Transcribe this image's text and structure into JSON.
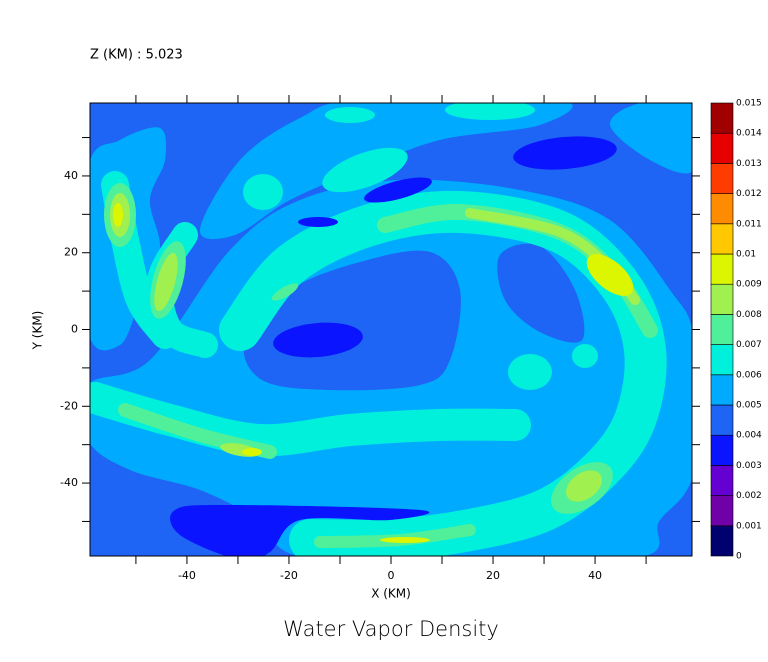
{
  "chart_data": {
    "type": "contour",
    "title": "Water Vapor Density",
    "subtitle": "Z (KM) : 5.023",
    "x_label": "X (KM)",
    "y_label": "Y (KM)",
    "xlim": [
      -59,
      59
    ],
    "ylim": [
      -59,
      59
    ],
    "xticks": [
      -40,
      -20,
      0,
      20,
      40
    ],
    "yticks": [
      -40,
      -20,
      0,
      20,
      40
    ],
    "xminorticks": [
      -50,
      -30,
      -10,
      10,
      30,
      50
    ],
    "yminorticks": [
      -50,
      -30,
      -10,
      10,
      30,
      50
    ],
    "colorbar": {
      "levels": [
        0,
        0.001,
        0.002,
        0.003,
        0.004,
        0.005,
        0.006,
        0.007,
        0.008,
        0.009,
        0.01,
        0.011,
        0.012,
        0.013,
        0.014,
        0.015
      ],
      "colors": [
        "#00006e",
        "#7000a8",
        "#6400d2",
        "#0a14ff",
        "#1e64f5",
        "#00aaff",
        "#00f0dc",
        "#50f09a",
        "#a0f050",
        "#dcf500",
        "#ffc800",
        "#ff8c00",
        "#ff3c00",
        "#e60000",
        "#a00000"
      ]
    }
  }
}
